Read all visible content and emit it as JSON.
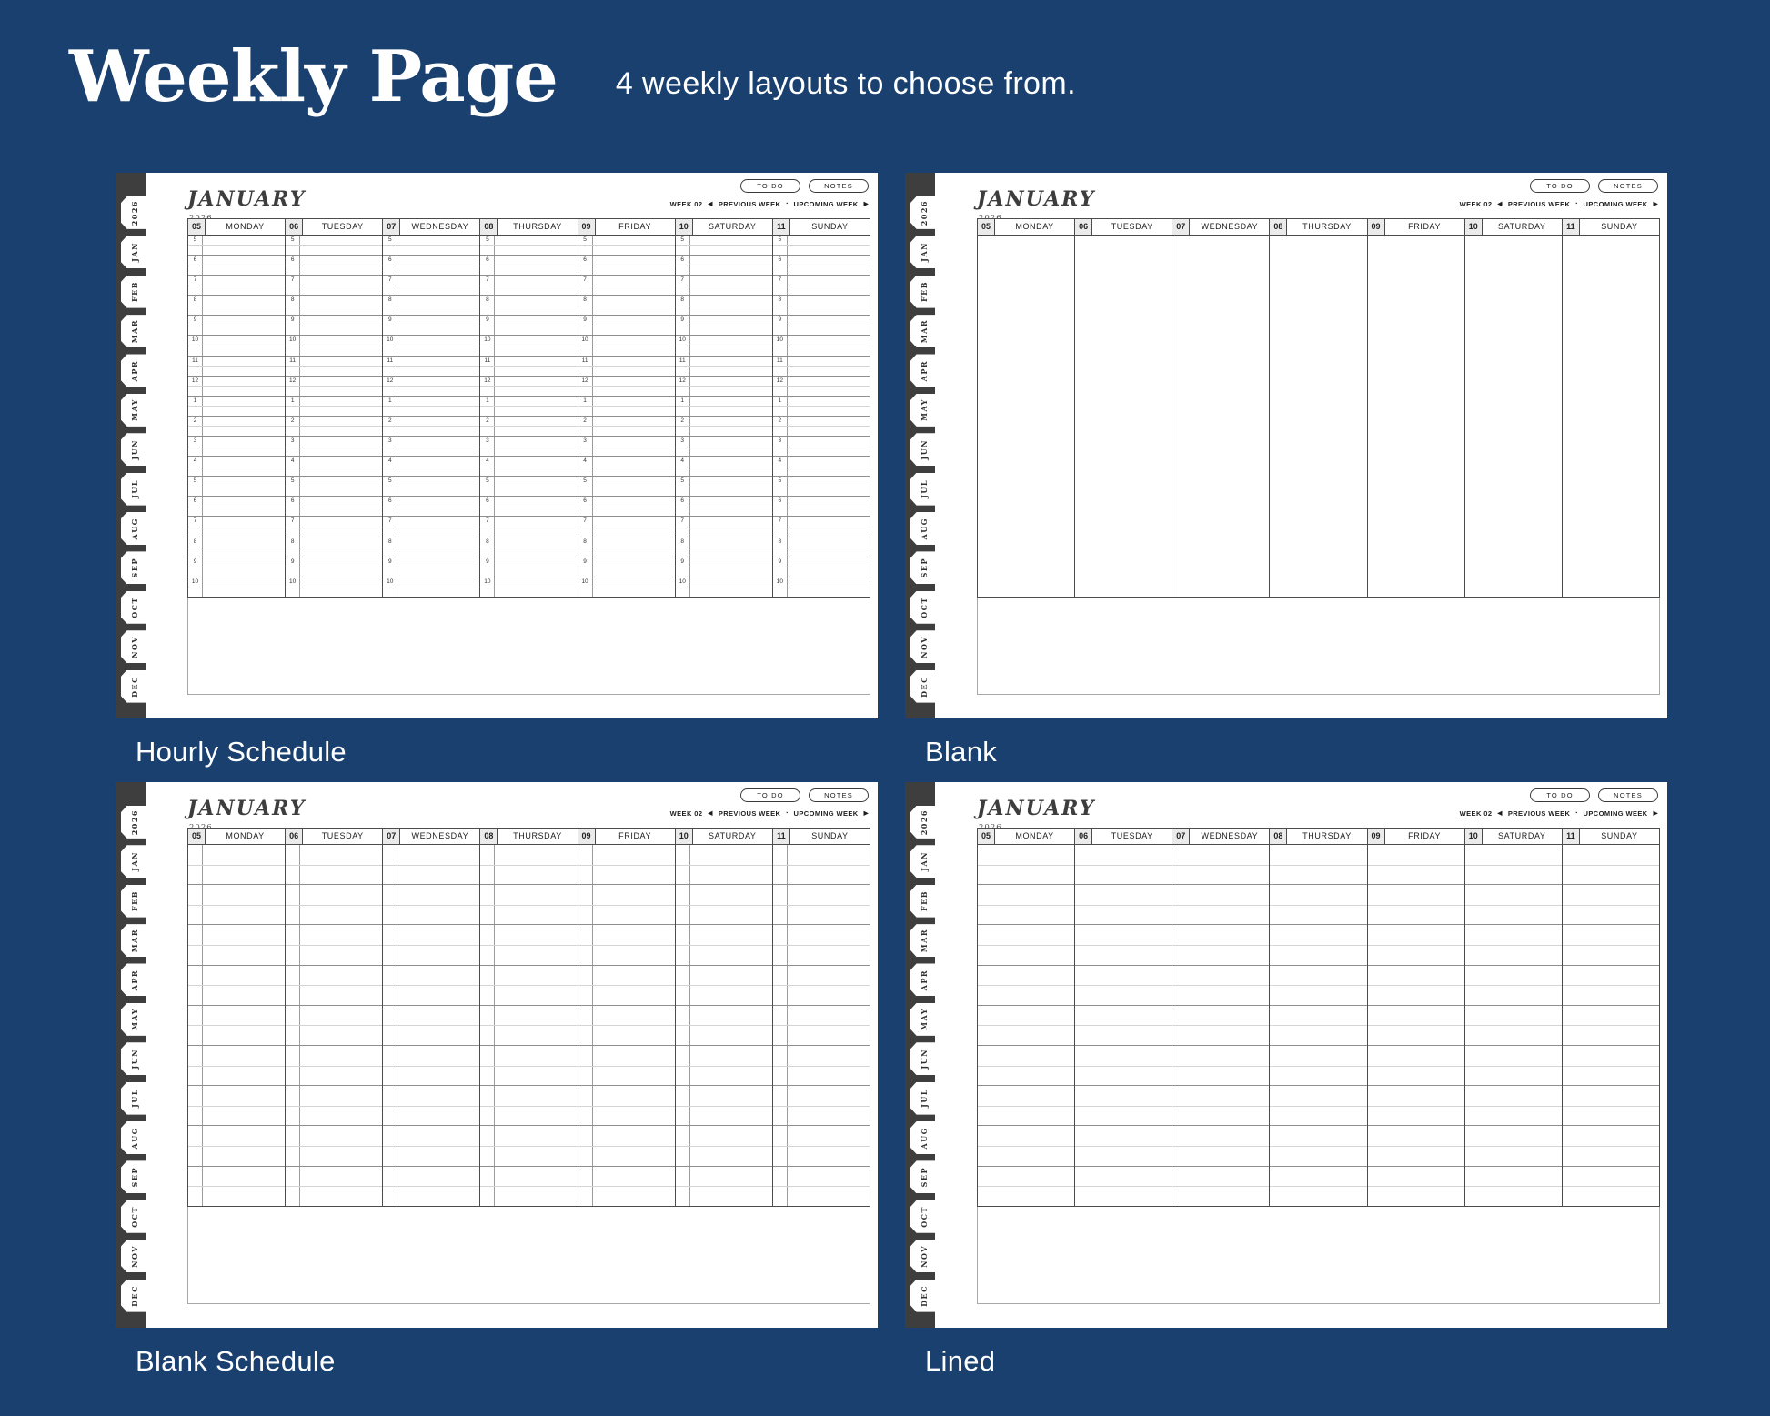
{
  "header": {
    "title": "Weekly Page",
    "subtitle": "4 weekly layouts to choose from."
  },
  "planner": {
    "month": "JANUARY",
    "year": "2026",
    "todo_label": "TO DO",
    "notes_label": "NOTES",
    "week_label": "WEEK 02",
    "prev_arrow": "◀",
    "prev_label": "PREVIOUS WEEK",
    "sep_dot": "▪",
    "next_label": "UPCOMING WEEK",
    "next_arrow": "▶",
    "tabs": [
      "2026",
      "JAN",
      "FEB",
      "MAR",
      "APR",
      "MAY",
      "JUN",
      "JUL",
      "AUG",
      "SEP",
      "OCT",
      "NOV",
      "DEC"
    ],
    "days": [
      {
        "num": "05",
        "name": "MONDAY"
      },
      {
        "num": "06",
        "name": "TUESDAY"
      },
      {
        "num": "07",
        "name": "WEDNESDAY"
      },
      {
        "num": "08",
        "name": "THURSDAY"
      },
      {
        "num": "09",
        "name": "FRIDAY"
      },
      {
        "num": "10",
        "name": "SATURDAY"
      },
      {
        "num": "11",
        "name": "SUNDAY"
      }
    ],
    "hours": [
      "5",
      "6",
      "7",
      "8",
      "9",
      "10",
      "11",
      "12",
      "1",
      "2",
      "3",
      "4",
      "5",
      "6",
      "7",
      "8",
      "9",
      "10"
    ],
    "rows9": [
      "",
      "",
      "",
      "",
      "",
      "",
      "",
      "",
      ""
    ]
  },
  "layouts": [
    {
      "label": "Hourly Schedule"
    },
    {
      "label": "Blank"
    },
    {
      "label": "Blank Schedule"
    },
    {
      "label": "Lined"
    }
  ],
  "colors": {
    "background": "#19406e",
    "spine": "#3e3e3e",
    "page": "#ffffff"
  }
}
